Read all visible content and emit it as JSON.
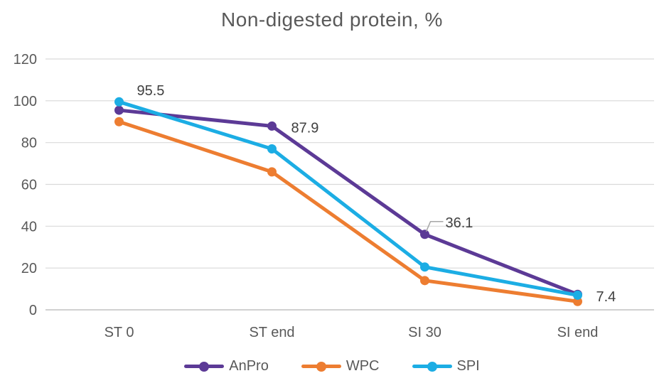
{
  "title": "Non-digested protein, %",
  "chart_data": {
    "type": "line",
    "title": "Non-digested protein, %",
    "categories": [
      "ST 0",
      "ST end",
      "SI 30",
      "SI end"
    ],
    "series": [
      {
        "name": "AnPro",
        "color": "#5C3A96",
        "values": [
          95.5,
          87.9,
          36.1,
          7.4
        ],
        "data_labels": [
          "95.5",
          "87.9",
          "36.1",
          "7.4"
        ]
      },
      {
        "name": "WPC",
        "color": "#ED7D31",
        "values": [
          90,
          66,
          14,
          4
        ]
      },
      {
        "name": "SPI",
        "color": "#1CADE4",
        "values": [
          99.5,
          77,
          20.5,
          7
        ]
      }
    ],
    "xlabel": "",
    "ylabel": "",
    "ylim": [
      0,
      120
    ],
    "yticks": [
      0,
      20,
      40,
      60,
      80,
      100,
      120
    ],
    "grid": true,
    "legend_position": "bottom",
    "marker": "circle"
  },
  "style": {
    "background": "#FFFFFF",
    "text_color": "#595959",
    "data_label_color": "#404040",
    "grid_color": "#D9D9D9",
    "axis_color": "#C0C0C0",
    "leader_color": "#A6A6A6"
  }
}
